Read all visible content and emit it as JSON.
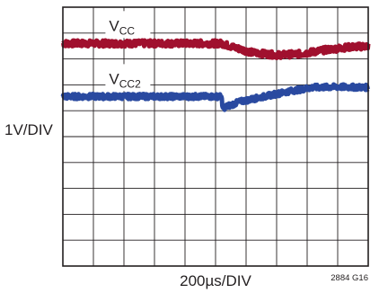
{
  "chart_data": {
    "type": "line",
    "title": "",
    "xlabel": "200µs/DIV",
    "ylabel": "1V/DIV",
    "figure_id": "2884 G16",
    "grid": true,
    "divisions": {
      "x": 10,
      "y": 10
    },
    "xlim": [
      0,
      10
    ],
    "ylim": [
      0,
      10
    ],
    "series": [
      {
        "name": "V",
        "subscript": "CC",
        "color": "#a0102e",
        "label_x": 2.1,
        "points": [
          [
            0,
            8.6
          ],
          [
            2.1,
            8.6
          ],
          [
            5.2,
            8.6
          ],
          [
            5.6,
            8.45
          ],
          [
            6.2,
            8.25
          ],
          [
            7.0,
            8.15
          ],
          [
            7.8,
            8.2
          ],
          [
            8.6,
            8.35
          ],
          [
            9.3,
            8.45
          ],
          [
            10,
            8.5
          ]
        ],
        "noise": 0.12
      },
      {
        "name": "V",
        "subscript": "CC2",
        "color": "#2a4aa0",
        "label_x": 2.1,
        "points": [
          [
            0,
            6.55
          ],
          [
            5.2,
            6.55
          ],
          [
            5.22,
            6.1
          ],
          [
            5.8,
            6.35
          ],
          [
            6.6,
            6.55
          ],
          [
            7.4,
            6.75
          ],
          [
            8.2,
            6.9
          ],
          [
            9.0,
            6.92
          ],
          [
            10,
            6.9
          ]
        ],
        "noise": 0.1
      }
    ]
  }
}
